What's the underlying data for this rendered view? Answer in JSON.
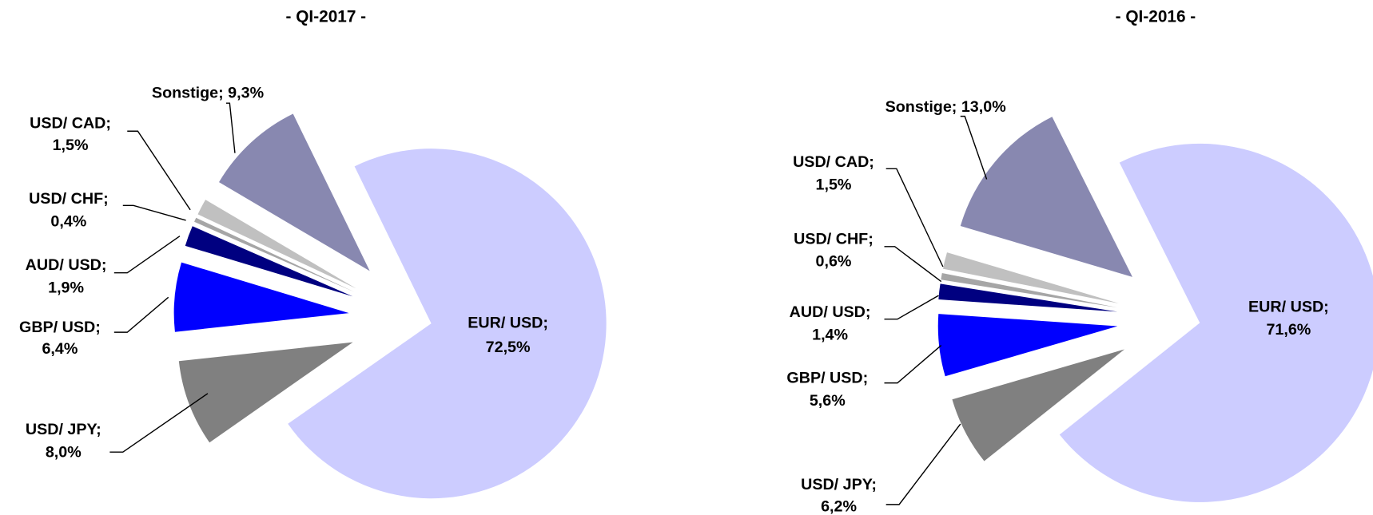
{
  "chart_data": [
    {
      "type": "pie",
      "title": "- QI-2017 -",
      "categories": [
        "EUR/ USD;",
        "USD/ JPY;",
        "GBP/ USD;",
        "AUD/ USD;",
        "USD/ CHF;",
        "USD/ CAD;",
        "Sonstige;"
      ],
      "values": [
        72.5,
        8.0,
        6.4,
        1.9,
        0.4,
        1.5,
        9.3
      ],
      "value_labels": [
        "72,5%",
        "8,0%",
        "6,4%",
        "1,9%",
        "0,4%",
        "1,5%",
        "9,3%"
      ],
      "colors": [
        "#ccccff",
        "#808080",
        "#0000ff",
        "#000080",
        "#a6a6a6",
        "#c0c0c0",
        "#8888b0"
      ]
    },
    {
      "type": "pie",
      "title": "- QI-2016 -",
      "categories": [
        "EUR/ USD;",
        "USD/ JPY;",
        "GBP/ USD;",
        "AUD/ USD;",
        "USD/ CHF;",
        "USD/ CAD;",
        "Sonstige;"
      ],
      "values": [
        71.6,
        6.2,
        5.6,
        1.4,
        0.6,
        1.5,
        13.0
      ],
      "value_labels": [
        "71,6%",
        "6,2%",
        "5,6%",
        "1,4%",
        "0,6%",
        "1,5%",
        "13,0%"
      ],
      "colors": [
        "#ccccff",
        "#808080",
        "#0000ff",
        "#000080",
        "#a6a6a6",
        "#c0c0c0",
        "#8888b0"
      ]
    }
  ]
}
